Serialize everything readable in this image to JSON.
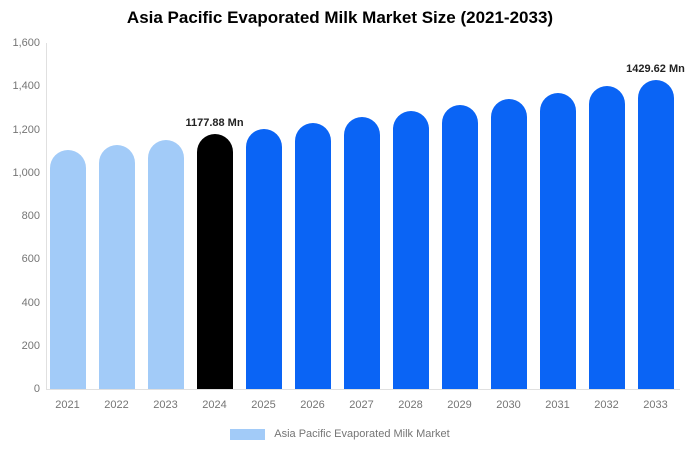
{
  "title": "Asia Pacific Evaporated Milk Market Size (2021-2033)",
  "unit": "Mn",
  "legend": {
    "items": [
      {
        "label": "Asia Pacific Evaporated Milk Market",
        "color": "#a2cbf8"
      }
    ]
  },
  "colors": {
    "past_bar": "#a2cbf8",
    "current_bar": "#000000",
    "forecast_bar": "#0a64f5",
    "axis_line": "#e0e0e0",
    "tick_text": "#757575",
    "value_label_text": "#222222",
    "background": "#ffffff"
  },
  "chart_data": {
    "type": "bar",
    "title": "Asia Pacific Evaporated Milk Market Size (2021-2033)",
    "xlabel": "",
    "ylabel": "",
    "categories": [
      "2021",
      "2022",
      "2023",
      "2024",
      "2025",
      "2026",
      "2027",
      "2028",
      "2029",
      "2030",
      "2031",
      "2032",
      "2033"
    ],
    "values": [
      1104,
      1128,
      1153,
      1177.88,
      1204,
      1230,
      1257,
      1284,
      1312,
      1341,
      1370,
      1400,
      1429.62
    ],
    "bar_colors": [
      "#a2cbf8",
      "#a2cbf8",
      "#a2cbf8",
      "#000000",
      "#0a64f5",
      "#0a64f5",
      "#0a64f5",
      "#0a64f5",
      "#0a64f5",
      "#0a64f5",
      "#0a64f5",
      "#0a64f5",
      "#0a64f5"
    ],
    "point_labels": [
      {
        "index": 3,
        "text": "1177.88 Mn"
      },
      {
        "index": 12,
        "text": "1429.62 Mn"
      }
    ],
    "ylim": [
      0,
      1600
    ],
    "y_ticks": [
      {
        "value": 0,
        "label": "0"
      },
      {
        "value": 200,
        "label": "200"
      },
      {
        "value": 400,
        "label": "400"
      },
      {
        "value": 600,
        "label": "600"
      },
      {
        "value": 800,
        "label": "800"
      },
      {
        "value": 1000,
        "label": "1,000"
      },
      {
        "value": 1200,
        "label": "1,200"
      },
      {
        "value": 1400,
        "label": "1,400"
      },
      {
        "value": 1600,
        "label": "1,600"
      }
    ],
    "grid": false,
    "legend_position": "bottom"
  }
}
